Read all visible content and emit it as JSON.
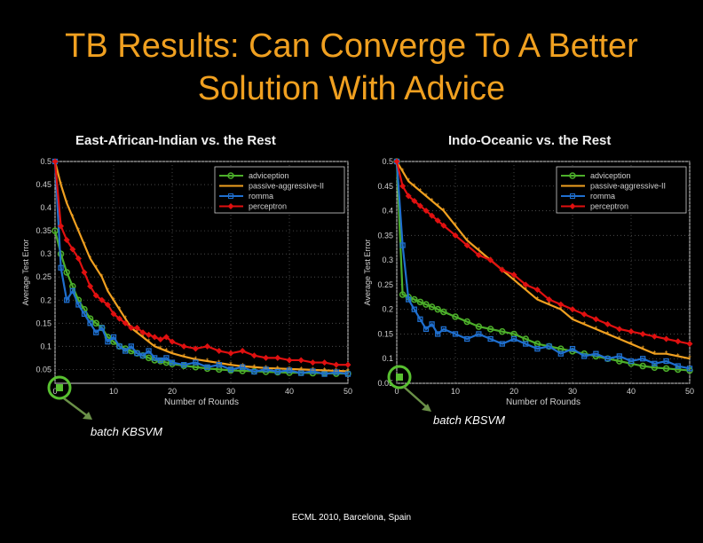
{
  "slide": {
    "title_line1": "TB Results: Can Converge To A Better",
    "title_line2": "Solution With Advice",
    "footer": "ECML 2010, Barcelona, Spain",
    "annotation_left": "batch KBSVM",
    "annotation_right": "batch KBSVM",
    "title_color": "#f0a020"
  },
  "chart_data": [
    {
      "type": "line",
      "title": "East-African-Indian vs. the Rest",
      "xlabel": "Number of Rounds",
      "ylabel": "Average Test Error",
      "xlim": [
        0,
        50
      ],
      "ylim": [
        0.02,
        0.5
      ],
      "xticks": [
        "0",
        "10",
        "20",
        "30",
        "40",
        "50"
      ],
      "yticks": [
        "0.05",
        "0.1",
        "0.15",
        "0.2",
        "0.25",
        "0.3",
        "0.35",
        "0.4",
        "0.45",
        "0.5"
      ],
      "ytick_values": [
        0.05,
        0.1,
        0.15,
        0.2,
        0.25,
        0.3,
        0.35,
        0.4,
        0.45,
        0.5
      ],
      "legend_position": "top-right",
      "grid": true,
      "series": [
        {
          "name": "adviception",
          "color": "#4caf2a",
          "marker": "circle",
          "x": [
            0,
            1,
            2,
            3,
            4,
            5,
            6,
            7,
            8,
            9,
            10,
            11,
            12,
            13,
            14,
            15,
            16,
            17,
            18,
            19,
            20,
            22,
            24,
            26,
            28,
            30,
            32,
            34,
            36,
            38,
            40,
            42,
            44,
            46,
            48,
            50
          ],
          "y": [
            0.35,
            0.3,
            0.26,
            0.23,
            0.2,
            0.18,
            0.16,
            0.15,
            0.14,
            0.12,
            0.11,
            0.1,
            0.095,
            0.09,
            0.085,
            0.08,
            0.075,
            0.07,
            0.068,
            0.065,
            0.062,
            0.058,
            0.055,
            0.052,
            0.05,
            0.048,
            0.047,
            0.046,
            0.045,
            0.044,
            0.043,
            0.043,
            0.042,
            0.042,
            0.041,
            0.041
          ]
        },
        {
          "name": "passive-aggressive-II",
          "color": "#f0a020",
          "marker": "star",
          "x": [
            0,
            1,
            2,
            3,
            4,
            5,
            6,
            7,
            8,
            9,
            10,
            11,
            12,
            13,
            14,
            15,
            16,
            17,
            18,
            19,
            20,
            22,
            24,
            26,
            28,
            30,
            32,
            34,
            36,
            38,
            40,
            42,
            44,
            46,
            48,
            50
          ],
          "y": [
            0.5,
            0.45,
            0.41,
            0.38,
            0.35,
            0.32,
            0.29,
            0.27,
            0.25,
            0.22,
            0.2,
            0.18,
            0.16,
            0.14,
            0.13,
            0.12,
            0.11,
            0.1,
            0.095,
            0.09,
            0.085,
            0.078,
            0.072,
            0.068,
            0.064,
            0.06,
            0.057,
            0.055,
            0.053,
            0.052,
            0.051,
            0.05,
            0.049,
            0.048,
            0.047,
            0.046
          ]
        },
        {
          "name": "romma",
          "color": "#1f6fcf",
          "marker": "square",
          "x": [
            0,
            1,
            2,
            3,
            4,
            5,
            6,
            7,
            8,
            9,
            10,
            11,
            12,
            13,
            14,
            15,
            16,
            17,
            18,
            19,
            20,
            22,
            24,
            26,
            28,
            30,
            32,
            34,
            36,
            38,
            40,
            42,
            44,
            46,
            48,
            50
          ],
          "y": [
            0.5,
            0.27,
            0.2,
            0.22,
            0.19,
            0.17,
            0.15,
            0.13,
            0.14,
            0.11,
            0.12,
            0.1,
            0.09,
            0.1,
            0.085,
            0.08,
            0.09,
            0.075,
            0.07,
            0.075,
            0.065,
            0.06,
            0.065,
            0.055,
            0.06,
            0.05,
            0.055,
            0.045,
            0.05,
            0.045,
            0.048,
            0.042,
            0.046,
            0.04,
            0.044,
            0.04
          ]
        },
        {
          "name": "perceptron",
          "color": "#e01010",
          "marker": "diamond",
          "x": [
            0,
            1,
            2,
            3,
            4,
            5,
            6,
            7,
            8,
            9,
            10,
            11,
            12,
            13,
            14,
            15,
            16,
            17,
            18,
            19,
            20,
            22,
            24,
            26,
            28,
            30,
            32,
            34,
            36,
            38,
            40,
            42,
            44,
            46,
            48,
            50
          ],
          "y": [
            0.5,
            0.36,
            0.33,
            0.31,
            0.29,
            0.26,
            0.23,
            0.21,
            0.2,
            0.19,
            0.17,
            0.16,
            0.15,
            0.14,
            0.14,
            0.13,
            0.125,
            0.12,
            0.115,
            0.12,
            0.11,
            0.1,
            0.095,
            0.1,
            0.09,
            0.085,
            0.09,
            0.08,
            0.075,
            0.075,
            0.07,
            0.07,
            0.065,
            0.065,
            0.06,
            0.06
          ]
        }
      ]
    },
    {
      "type": "line",
      "title": "Indo-Oceanic vs. the Rest",
      "xlabel": "Number of Rounds",
      "ylabel": "Average Test Error",
      "xlim": [
        0,
        50
      ],
      "ylim": [
        0.05,
        0.5
      ],
      "xticks": [
        "0",
        "10",
        "20",
        "30",
        "40",
        "50"
      ],
      "yticks": [
        "0.05",
        "0.1",
        "0.15",
        "0.2",
        "0.25",
        "0.3",
        "0.35",
        "0.4",
        "0.45",
        "0.5"
      ],
      "ytick_values": [
        0.05,
        0.1,
        0.15,
        0.2,
        0.25,
        0.3,
        0.35,
        0.4,
        0.45,
        0.5
      ],
      "legend_position": "top-right",
      "grid": true,
      "series": [
        {
          "name": "adviception",
          "color": "#4caf2a",
          "marker": "circle",
          "x": [
            0,
            1,
            2,
            3,
            4,
            5,
            6,
            7,
            8,
            10,
            12,
            14,
            16,
            18,
            20,
            22,
            24,
            26,
            28,
            30,
            32,
            34,
            36,
            38,
            40,
            42,
            44,
            46,
            48,
            50
          ],
          "y": [
            0.5,
            0.23,
            0.225,
            0.22,
            0.215,
            0.21,
            0.205,
            0.2,
            0.195,
            0.185,
            0.175,
            0.165,
            0.16,
            0.155,
            0.15,
            0.14,
            0.13,
            0.125,
            0.12,
            0.115,
            0.11,
            0.105,
            0.1,
            0.095,
            0.09,
            0.085,
            0.082,
            0.08,
            0.078,
            0.076
          ]
        },
        {
          "name": "passive-aggressive-II",
          "color": "#f0a020",
          "marker": "star",
          "x": [
            0,
            1,
            2,
            3,
            4,
            5,
            6,
            7,
            8,
            10,
            12,
            14,
            16,
            18,
            20,
            22,
            24,
            26,
            28,
            30,
            32,
            34,
            36,
            38,
            40,
            42,
            44,
            46,
            48,
            50
          ],
          "y": [
            0.5,
            0.48,
            0.46,
            0.45,
            0.44,
            0.43,
            0.42,
            0.41,
            0.4,
            0.37,
            0.34,
            0.32,
            0.3,
            0.28,
            0.26,
            0.24,
            0.22,
            0.21,
            0.2,
            0.18,
            0.17,
            0.16,
            0.15,
            0.14,
            0.13,
            0.12,
            0.11,
            0.11,
            0.105,
            0.1
          ]
        },
        {
          "name": "romma",
          "color": "#1f6fcf",
          "marker": "square",
          "x": [
            0,
            1,
            2,
            3,
            4,
            5,
            6,
            7,
            8,
            10,
            12,
            14,
            16,
            18,
            20,
            22,
            24,
            26,
            28,
            30,
            32,
            34,
            36,
            38,
            40,
            42,
            44,
            46,
            48,
            50
          ],
          "y": [
            0.5,
            0.33,
            0.22,
            0.2,
            0.18,
            0.16,
            0.17,
            0.15,
            0.16,
            0.15,
            0.14,
            0.15,
            0.14,
            0.13,
            0.14,
            0.13,
            0.12,
            0.125,
            0.11,
            0.12,
            0.105,
            0.11,
            0.1,
            0.105,
            0.095,
            0.1,
            0.09,
            0.095,
            0.085,
            0.08
          ]
        },
        {
          "name": "perceptron",
          "color": "#e01010",
          "marker": "diamond",
          "x": [
            0,
            1,
            2,
            3,
            4,
            5,
            6,
            7,
            8,
            10,
            12,
            14,
            16,
            18,
            20,
            22,
            24,
            26,
            28,
            30,
            32,
            34,
            36,
            38,
            40,
            42,
            44,
            46,
            48,
            50
          ],
          "y": [
            0.5,
            0.45,
            0.43,
            0.42,
            0.41,
            0.4,
            0.39,
            0.38,
            0.37,
            0.35,
            0.33,
            0.31,
            0.3,
            0.28,
            0.27,
            0.25,
            0.24,
            0.22,
            0.21,
            0.2,
            0.19,
            0.18,
            0.17,
            0.16,
            0.155,
            0.15,
            0.145,
            0.14,
            0.135,
            0.13
          ]
        }
      ]
    }
  ]
}
